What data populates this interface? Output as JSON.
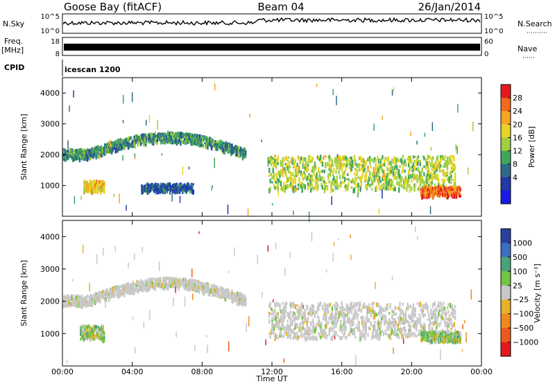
{
  "header": {
    "station": "Goose Bay (fitACF)",
    "beam": "Beam 04",
    "date": "26/Jan/2014"
  },
  "strips": {
    "nsky_label": "N.Sky",
    "nsky_top": "10^5",
    "nsky_bottom": "10^0",
    "nsearch_label": "N.Search",
    "nsearch_top": "10^5",
    "nsearch_bottom": "10^0",
    "freq_label": "Freq.",
    "freq_unit": "[MHz]",
    "freq_top": "18",
    "freq_bottom": "8",
    "nave_label": "Nave",
    "nave_top": "60",
    "nave_bottom": "0",
    "cpid_label": "CPID",
    "cpid_value": "icescan 1200"
  },
  "panels": {
    "ylabel": "Slant Range [km]",
    "y_ticks": [
      "4000",
      "3000",
      "2000",
      "1000"
    ],
    "x_ticks": [
      "00:00",
      "04:00",
      "08:00",
      "12:00",
      "16:00",
      "20:00",
      "00:00"
    ],
    "xlabel": "Time UT"
  },
  "power_scale": {
    "label": "Power [dB]",
    "ticks": [
      "28",
      "24",
      "20",
      "16",
      "12",
      "8",
      "4"
    ],
    "colors": [
      "#e41a1c",
      "#f06a1a",
      "#f5a623",
      "#e8d426",
      "#9fcf3f",
      "#3fa65a",
      "#2f6a8a",
      "#2238a8",
      "#1a1ae6"
    ]
  },
  "velocity_scale": {
    "label": "Velocity [m s⁻¹]",
    "ticks": [
      "1000",
      "500",
      "100",
      "25",
      "−25",
      "−100",
      "−500",
      "−1000"
    ],
    "colors": [
      "#2b3fa0",
      "#3c6fbf",
      "#4aa27a",
      "#72c541",
      "#c8c8c8",
      "#e6b22a",
      "#f08a1e",
      "#ef5a1a",
      "#e41a1c"
    ]
  },
  "chart_data": [
    {
      "type": "heatmap",
      "title": "",
      "xlabel": "Time UT",
      "ylabel": "Slant Range [km]",
      "x_range": [
        "00:00",
        "24:00"
      ],
      "ylim": [
        0,
        4500
      ],
      "colorbar": "Power [dB]",
      "color_range": [
        0,
        30
      ],
      "features": [
        {
          "time_start": 0.0,
          "time_end": 10.5,
          "range_start_km": 2050,
          "range_end_km": 2700,
          "shape": "arc",
          "power_db": 10
        },
        {
          "time_start": 1.2,
          "time_end": 2.4,
          "range_start_km": 850,
          "range_end_km": 1200,
          "power_db": 20
        },
        {
          "time_start": 4.5,
          "time_end": 7.5,
          "range_start_km": 850,
          "range_end_km": 1100,
          "power_db": 6
        },
        {
          "time_start": 11.8,
          "time_end": 22.5,
          "range_start_km": 900,
          "range_end_km": 2000,
          "power_db": 16
        },
        {
          "time_start": 20.5,
          "time_end": 22.8,
          "range_start_km": 700,
          "range_end_km": 1000,
          "power_db": 26
        }
      ]
    },
    {
      "type": "heatmap",
      "title": "",
      "xlabel": "Time UT",
      "ylabel": "Slant Range [km]",
      "x_range": [
        "00:00",
        "24:00"
      ],
      "ylim": [
        0,
        4500
      ],
      "colorbar": "Velocity [m s⁻¹]",
      "color_range": [
        -1000,
        1000
      ],
      "features": [
        {
          "time_start": 0.0,
          "time_end": 10.5,
          "range_start_km": 2050,
          "range_end_km": 2700,
          "shape": "arc",
          "velocity": 0
        },
        {
          "time_start": 1.0,
          "time_end": 2.4,
          "range_start_km": 850,
          "range_end_km": 1300,
          "velocity": 80
        },
        {
          "time_start": 11.8,
          "time_end": 22.5,
          "range_start_km": 900,
          "range_end_km": 2000,
          "velocity": 0
        },
        {
          "time_start": 20.5,
          "time_end": 22.8,
          "range_start_km": 800,
          "range_end_km": 1100,
          "velocity": 150
        }
      ]
    }
  ]
}
